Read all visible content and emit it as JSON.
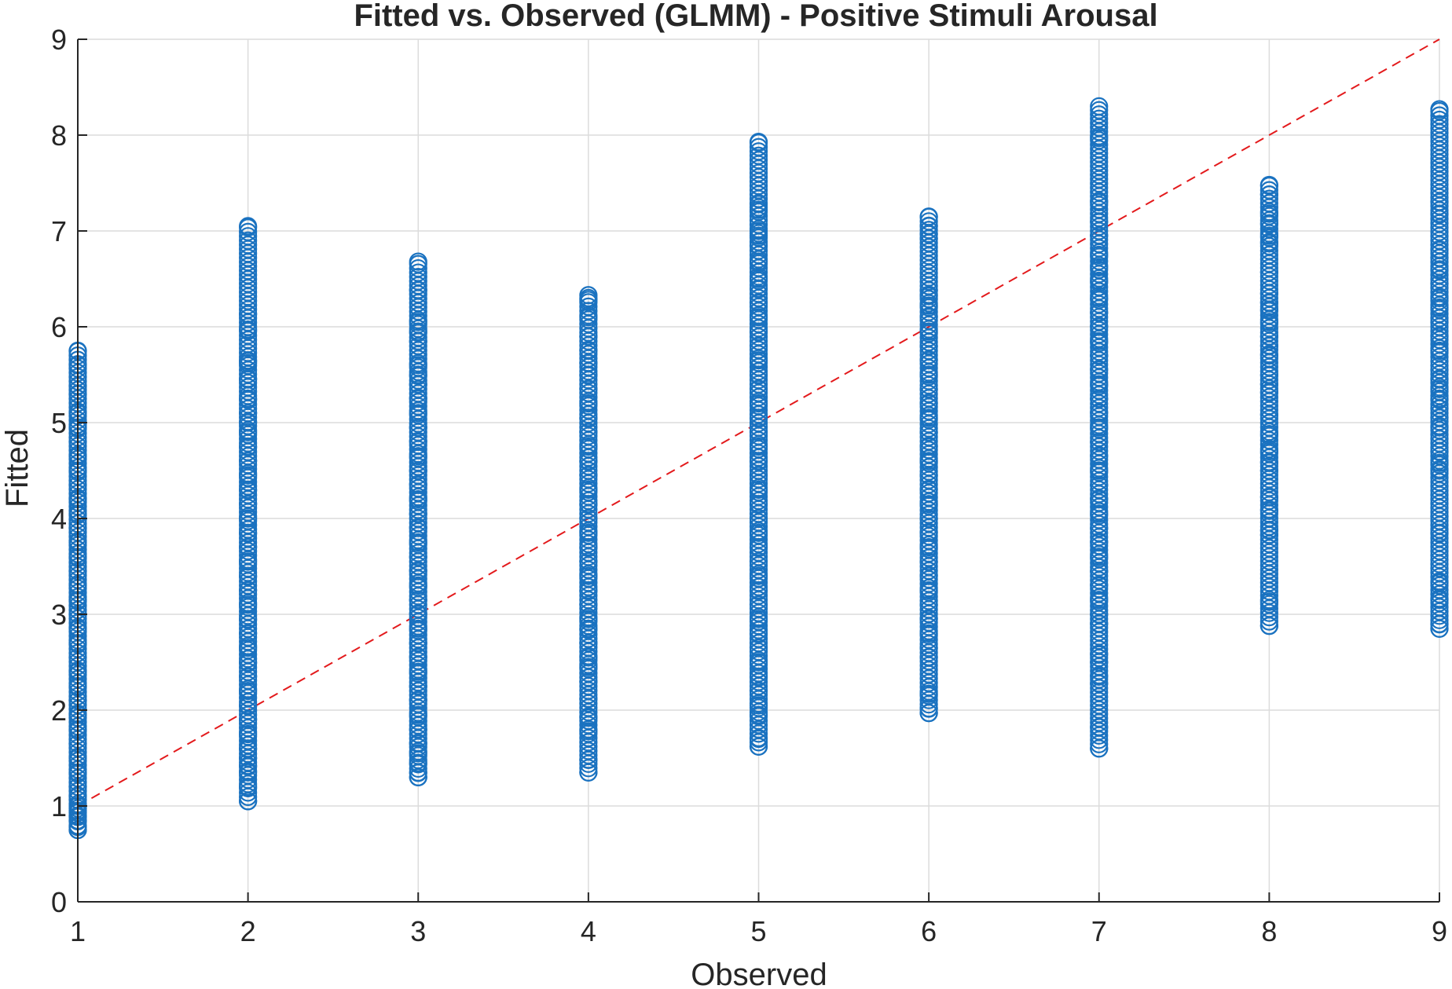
{
  "chart_data": {
    "type": "scatter",
    "title": "Fitted vs. Observed (GLMM) - Positive Stimuli Arousal",
    "xlabel": "Observed",
    "ylabel": "Fitted",
    "xlim": [
      1,
      9
    ],
    "ylim": [
      0,
      9
    ],
    "xticks": [
      "1",
      "2",
      "3",
      "4",
      "5",
      "6",
      "7",
      "8",
      "9"
    ],
    "yticks": [
      "0",
      "1",
      "2",
      "3",
      "4",
      "5",
      "6",
      "7",
      "8",
      "9"
    ],
    "grid": true,
    "legend": "none",
    "marker": "open-circle",
    "colors": {
      "points": "#1a72c0",
      "reference_line": "#e31a1c",
      "axis": "#262626",
      "grid": "#dcdcdc"
    },
    "reference_line": {
      "style": "dashed",
      "from": [
        1,
        1
      ],
      "to": [
        9,
        9
      ]
    },
    "series": [
      {
        "x": 1,
        "y_min": 0.75,
        "y_max": 5.75,
        "y": [
          0.75,
          0.78,
          0.85,
          0.9,
          0.95,
          1.0,
          1.1,
          1.2,
          1.35,
          1.5,
          1.65,
          1.8,
          1.95,
          2.1,
          2.25,
          2.4,
          2.55,
          2.7,
          2.85,
          3.0,
          3.15,
          3.3,
          3.45,
          3.6,
          3.75,
          3.9,
          4.05,
          4.2,
          4.35,
          4.5,
          4.65,
          4.8,
          4.95,
          5.1,
          5.3,
          5.38,
          5.6,
          5.75
        ]
      },
      {
        "x": 2,
        "y_min": 1.05,
        "y_max": 7.05,
        "y": [
          1.05,
          1.2,
          1.35,
          1.42,
          1.5,
          1.6,
          1.75,
          1.9,
          2.05,
          2.2,
          2.35,
          2.5,
          2.65,
          2.8,
          2.95,
          3.1,
          3.25,
          3.4,
          3.55,
          3.7,
          3.85,
          4.0,
          4.15,
          4.3,
          4.45,
          4.6,
          4.75,
          4.9,
          5.0,
          5.1,
          5.25,
          5.45,
          5.62,
          5.65,
          5.97,
          6.13,
          7.05
        ]
      },
      {
        "x": 3,
        "y_min": 1.3,
        "y_max": 6.68,
        "y": [
          1.3,
          1.35,
          1.45,
          1.55,
          1.65,
          1.8,
          1.95,
          2.1,
          2.25,
          2.4,
          2.55,
          2.7,
          2.85,
          3.0,
          3.15,
          3.3,
          3.45,
          3.6,
          3.75,
          3.9,
          4.05,
          4.2,
          4.35,
          4.5,
          4.65,
          4.8,
          4.95,
          5.1,
          5.25,
          5.4,
          5.5,
          5.6,
          5.85,
          5.95,
          6.05,
          6.38,
          6.68
        ]
      },
      {
        "x": 4,
        "y_min": 1.35,
        "y_max": 6.33,
        "y": [
          1.35,
          1.48,
          1.78,
          1.92,
          2.12,
          2.3,
          2.45,
          2.55,
          2.7,
          2.85,
          2.95,
          3.1,
          3.25,
          3.4,
          3.55,
          3.7,
          3.85,
          4.0,
          4.15,
          4.3,
          4.45,
          4.6,
          4.75,
          4.9,
          5.05,
          5.2,
          5.35,
          5.5,
          5.62,
          5.75,
          5.9,
          6.1,
          6.28,
          6.33
        ]
      },
      {
        "x": 5,
        "y_min": 1.62,
        "y_max": 7.93,
        "y": [
          1.62,
          1.7,
          1.95,
          2.05,
          2.2,
          2.35,
          2.5,
          2.65,
          2.8,
          2.95,
          3.1,
          3.25,
          3.4,
          3.55,
          3.7,
          3.85,
          4.0,
          4.15,
          4.3,
          4.45,
          4.6,
          4.75,
          4.9,
          5.05,
          5.2,
          5.35,
          5.5,
          5.65,
          5.8,
          5.95,
          6.1,
          6.25,
          6.4,
          6.5,
          6.68,
          6.85,
          6.95,
          7.0,
          7.22,
          7.28,
          7.93
        ]
      },
      {
        "x": 6,
        "y_min": 1.97,
        "y_max": 7.15,
        "y": [
          1.97,
          2.02,
          2.17,
          2.55,
          2.65,
          2.8,
          2.95,
          3.1,
          3.25,
          3.4,
          3.55,
          3.7,
          3.85,
          4.0,
          4.15,
          4.3,
          4.45,
          4.6,
          4.75,
          4.9,
          5.05,
          5.2,
          5.35,
          5.5,
          5.65,
          5.8,
          5.95,
          6.1,
          6.22,
          6.32,
          6.38,
          6.92,
          6.97,
          7.05,
          7.15
        ]
      },
      {
        "x": 7,
        "y_min": 1.6,
        "y_max": 8.3,
        "y": [
          1.6,
          1.82,
          2.28,
          2.35,
          2.5,
          2.58,
          2.9,
          3.0,
          3.15,
          3.3,
          3.45,
          3.6,
          3.75,
          3.9,
          4.05,
          4.2,
          4.35,
          4.5,
          4.65,
          4.8,
          4.95,
          5.1,
          5.25,
          5.4,
          5.55,
          5.7,
          5.85,
          6.0,
          6.15,
          6.3,
          6.48,
          6.62,
          6.75,
          6.95,
          7.1,
          7.3,
          7.97,
          8.3
        ]
      },
      {
        "x": 8,
        "y_min": 2.88,
        "y_max": 7.48,
        "y": [
          2.88,
          3.13,
          3.83,
          3.88,
          4.08,
          4.22,
          4.5,
          4.58,
          4.7,
          4.88,
          5.08,
          5.32,
          5.4,
          5.5,
          5.7,
          5.8,
          5.9,
          6.05,
          6.18,
          6.25,
          6.35,
          6.57,
          6.87,
          6.95,
          7.08,
          7.18,
          7.38,
          7.48
        ]
      },
      {
        "x": 9,
        "y_min": 2.85,
        "y_max": 8.27,
        "y": [
          2.85,
          2.9,
          3.15,
          3.33,
          3.85,
          4.02,
          4.5,
          4.58,
          4.7,
          4.95,
          5.05,
          5.15,
          5.25,
          5.35,
          5.45,
          5.55,
          5.75,
          5.9,
          6.05,
          6.2,
          6.3,
          6.45,
          6.6,
          6.72,
          6.8,
          7.18,
          7.3,
          8.27
        ]
      }
    ]
  }
}
